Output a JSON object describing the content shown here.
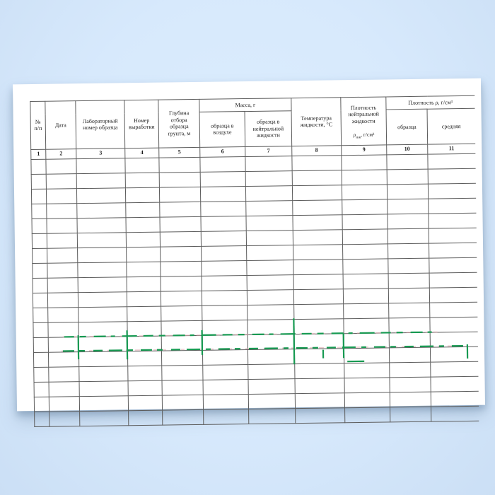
{
  "scene": {
    "background_color": "#d7e9fc",
    "paper_color": "#ffffff"
  },
  "table": {
    "grid_color": "#5c5c5c",
    "annotation_green": "#179a52",
    "annotation_pink": "#dba7ad",
    "group_headers": {
      "mass": "Масса, г",
      "density_pre": "Плотность ",
      "density_symbol": "ρ",
      "density_units": ", г/см³"
    },
    "columns": [
      {
        "id": 1,
        "label": "№\nп/п"
      },
      {
        "id": 2,
        "label": "Дата"
      },
      {
        "id": 3,
        "label": "Лабораторный\nномер образца"
      },
      {
        "id": 4,
        "label": "Номер\nвыработки"
      },
      {
        "id": 5,
        "label": "Глубина\nотбора\nобразца\nгрунта, м"
      },
      {
        "id": 6,
        "label": "образца в\nвоздухе"
      },
      {
        "id": 7,
        "label": "образца в\nнейтральной\nжидкости"
      },
      {
        "id": 8,
        "label": "Температура\nжидкости, °С"
      },
      {
        "id": 9,
        "label": "Плотность\nнейтральной\nжидкости",
        "formula_symbol": "ρ",
        "formula_sub": "нж",
        "formula_units": ", г/см³"
      },
      {
        "id": 10,
        "label": "образца"
      },
      {
        "id": 11,
        "label": "средняя"
      }
    ],
    "column_numbers": [
      "1",
      "2",
      "3",
      "4",
      "5",
      "6",
      "7",
      "8",
      "9",
      "10",
      "11"
    ],
    "data_row_count": 18
  }
}
